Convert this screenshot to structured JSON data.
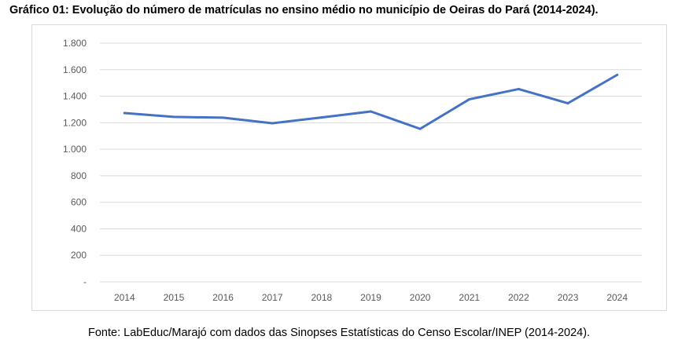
{
  "chart_data": {
    "type": "line",
    "title": "Gráfico 01: Evolução do número de matrículas no ensino médio no município de Oeiras do Pará (2014-2024).",
    "source": "Fonte: LabEduc/Marajó com dados das Sinopses Estatísticas do Censo Escolar/INEP (2014-2024).",
    "categories": [
      "2014",
      "2015",
      "2016",
      "2017",
      "2018",
      "2019",
      "2020",
      "2021",
      "2022",
      "2023",
      "2024"
    ],
    "values": [
      1273,
      1244,
      1238,
      1196,
      1240,
      1285,
      1154,
      1377,
      1454,
      1347,
      1561
    ],
    "ylim": [
      0,
      1800
    ],
    "yticks": [
      0,
      200,
      400,
      600,
      800,
      1000,
      1200,
      1400,
      1600,
      1800
    ],
    "ytick_labels": [
      "-",
      "200",
      "400",
      "600",
      "800",
      "1.000",
      "1.200",
      "1.400",
      "1.600",
      "1.800"
    ],
    "grid": true,
    "legend": "none",
    "line_color": "#4472C4",
    "grid_color": "#d9d9d9"
  }
}
